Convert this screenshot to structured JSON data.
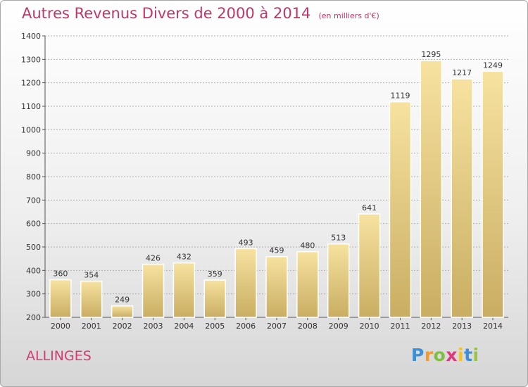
{
  "title": "Autres Revenus Divers de 2000 à 2014",
  "title_unit": "(en milliers d'€)",
  "place": "ALLINGES",
  "logo": {
    "p": "P",
    "r": "r",
    "o": "o",
    "x": "x",
    "i1": "i",
    "t": "t",
    "i2": "i"
  },
  "colors": {
    "bar_light": "#f7e2a0",
    "bar_dark": "#c9ad62",
    "title": "#c0366a",
    "grid": "#b0b0b0"
  },
  "chart_data": {
    "type": "bar",
    "title": "Autres Revenus Divers de 2000 à 2014",
    "categories": [
      "2000",
      "2001",
      "2002",
      "2003",
      "2004",
      "2005",
      "2006",
      "2007",
      "2008",
      "2009",
      "2010",
      "2011",
      "2012",
      "2013",
      "2014"
    ],
    "values": [
      360,
      354,
      249,
      426,
      432,
      359,
      493,
      459,
      480,
      513,
      641,
      1119,
      1295,
      1217,
      1249
    ],
    "xlabel": "",
    "ylabel": "",
    "ylim": [
      200,
      1400
    ],
    "yticks": [
      200,
      300,
      400,
      500,
      600,
      700,
      800,
      900,
      1000,
      1100,
      1200,
      1300,
      1400
    ],
    "grid": true,
    "legend": "none"
  }
}
